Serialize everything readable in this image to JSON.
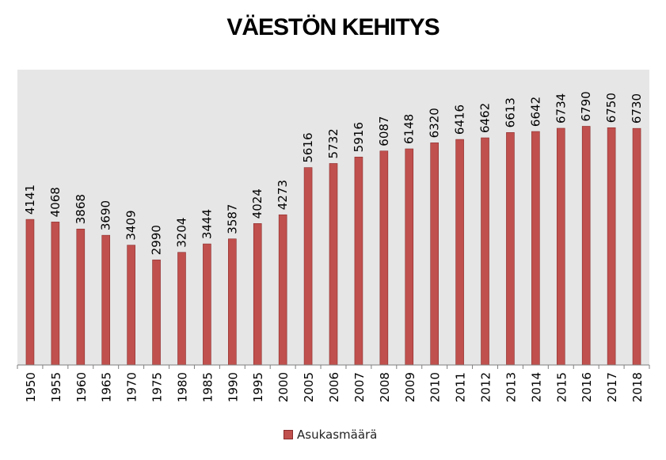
{
  "chart_data": {
    "type": "bar",
    "title": "VÄESTÖN KEHITYS",
    "categories": [
      "1950",
      "1955",
      "1960",
      "1965",
      "1970",
      "1975",
      "1980",
      "1985",
      "1990",
      "1995",
      "2000",
      "2005",
      "2006",
      "2007",
      "2008",
      "2009",
      "2010",
      "2011",
      "2012",
      "2013",
      "2014",
      "2015",
      "2016",
      "2017",
      "2018"
    ],
    "series": [
      {
        "name": "Asukasmäärä",
        "values": [
          4141,
          4068,
          3868,
          3690,
          3409,
          2990,
          3204,
          3444,
          3587,
          4024,
          4273,
          5616,
          5732,
          5916,
          6087,
          6148,
          6320,
          6416,
          6462,
          6613,
          6642,
          6734,
          6790,
          6750,
          6730
        ]
      }
    ],
    "data_labels": true,
    "ylim": [
      0,
      8400
    ],
    "grid": false,
    "legend_position": "bottom",
    "colors": {
      "bar": "#c0504d",
      "bar_edge": "#8a2d2d",
      "plot_background": "#e6e6e6",
      "axis": "#7f7f7f"
    }
  }
}
